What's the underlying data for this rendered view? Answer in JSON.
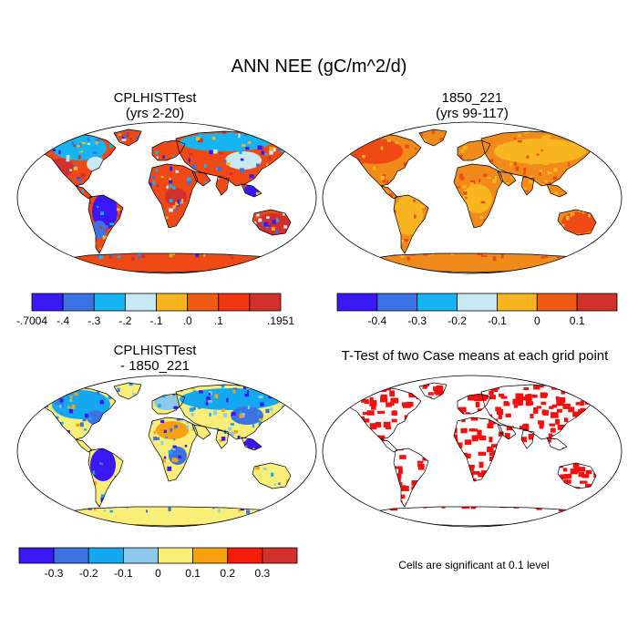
{
  "figure": {
    "title": "ANN NEE (gC/m^2/d)"
  },
  "panels": [
    {
      "title_line1": "CPLHISTTest",
      "title_line2": "(yrs 2-20)"
    },
    {
      "title_line1": "1850_221",
      "title_line2": "(yrs 99-117)"
    },
    {
      "title_line1": "CPLHISTTest",
      "title_line2": "- 1850_221"
    },
    {
      "title_line1": "T-Test of two Case means at each grid point",
      "title_line2": ""
    }
  ],
  "colorbars": [
    {
      "colors": [
        "#3a17f5",
        "#3d72e3",
        "#14b5f0",
        "#c8e8f4",
        "#f8b51f",
        "#f05a14",
        "#f03712",
        "#d1302c"
      ],
      "labels": [
        "-.7004",
        "-.4",
        "-.3",
        "-.2",
        "-.1",
        ".0",
        ".1",
        ".1951"
      ],
      "label_style": "edges"
    },
    {
      "colors": [
        "#3a17f5",
        "#3d72e3",
        "#14b5f0",
        "#c8e8f4",
        "#f8b51f",
        "#f05a14",
        "#d1302c"
      ],
      "labels": [
        "-0.4",
        "-0.3",
        "-0.2",
        "-0.1",
        "0",
        "0.1"
      ],
      "label_style": "inner"
    },
    {
      "colors": [
        "#3a17f5",
        "#3d72e3",
        "#14a8f0",
        "#8cc9ec",
        "#f8ee78",
        "#f8a010",
        "#f51c0e",
        "#d1302c"
      ],
      "labels": [
        "-0.3",
        "-0.2",
        "-0.1",
        "0",
        "0.1",
        "0.2",
        "0.3"
      ],
      "label_style": "inner"
    }
  ],
  "significance_note": "Cells are significant at 0.1 level",
  "map_colors": {
    "panel1": {
      "land": "#ef4a16",
      "high": "#d1302c",
      "low1": "#3a17f5",
      "low2": "#3d72e3",
      "mid": "#14b5f0",
      "pale": "#c8e8f4",
      "warm": "#f8b51f"
    },
    "panel2": {
      "land": "#f08a1a",
      "high": "#ef4a16",
      "warm": "#f8b51f"
    },
    "panel3": {
      "land": "#f8ee78",
      "low1": "#3a17f5",
      "low2": "#3d72e3",
      "mid": "#14a8f0",
      "pale": "#8cc9ec",
      "warm": "#f8a010"
    },
    "panel4": {
      "sig": "#f51010",
      "base": "#ffffff"
    }
  }
}
